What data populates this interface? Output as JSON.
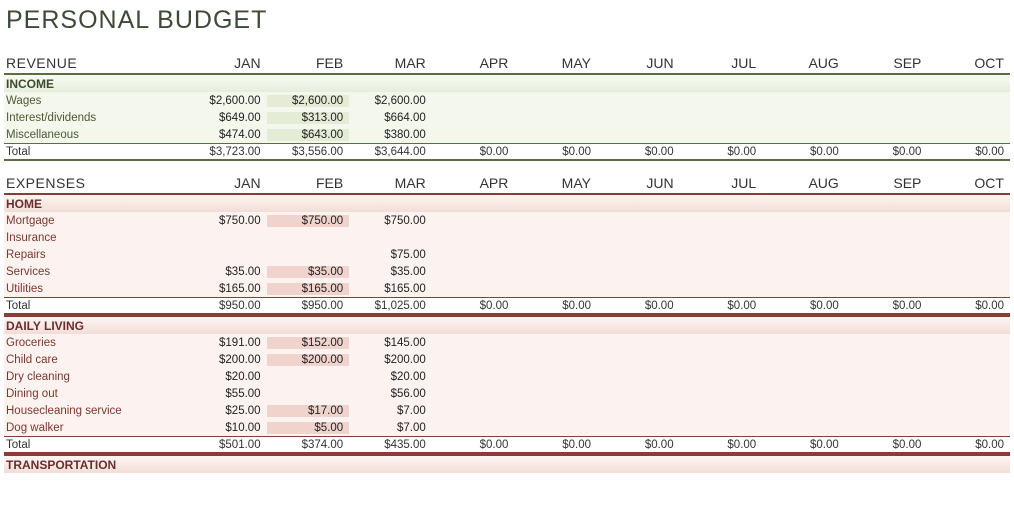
{
  "title": "PERSONAL BUDGET",
  "months": [
    "JAN",
    "FEB",
    "MAR",
    "APR",
    "MAY",
    "JUN",
    "JUL",
    "AUG",
    "SEP",
    "OCT"
  ],
  "currency_prefix": "$",
  "colors": {
    "income_border": "#5c6e3e",
    "income_bg": "#f3f7ec",
    "income_alt": "#e4ecd6",
    "income_label": "#4b5a36",
    "expense_border": "#8a3d36",
    "expense_bg": "#fcf3f0",
    "expense_alt": "#f1d3cd",
    "expense_label": "#7a382f"
  },
  "sections": [
    {
      "header": "REVENUE",
      "theme": "income",
      "categories": [
        {
          "name": "INCOME",
          "rows": [
            {
              "label": "Wages",
              "values": [
                2600.0,
                2600.0,
                2600.0,
                null,
                null,
                null,
                null,
                null,
                null,
                null
              ]
            },
            {
              "label": "Interest/dividends",
              "values": [
                649.0,
                313.0,
                664.0,
                null,
                null,
                null,
                null,
                null,
                null,
                null
              ]
            },
            {
              "label": "Miscellaneous",
              "values": [
                474.0,
                643.0,
                380.0,
                null,
                null,
                null,
                null,
                null,
                null,
                null
              ]
            }
          ],
          "total": {
            "label": "Total",
            "values": [
              3723.0,
              3556.0,
              3644.0,
              0.0,
              0.0,
              0.0,
              0.0,
              0.0,
              0.0,
              0.0
            ]
          }
        }
      ]
    },
    {
      "header": "EXPENSES",
      "theme": "expense",
      "categories": [
        {
          "name": "HOME",
          "rows": [
            {
              "label": "Mortgage",
              "values": [
                750.0,
                750.0,
                750.0,
                null,
                null,
                null,
                null,
                null,
                null,
                null
              ]
            },
            {
              "label": "Insurance",
              "values": [
                null,
                null,
                null,
                null,
                null,
                null,
                null,
                null,
                null,
                null
              ]
            },
            {
              "label": "Repairs",
              "values": [
                null,
                null,
                75.0,
                null,
                null,
                null,
                null,
                null,
                null,
                null
              ]
            },
            {
              "label": "Services",
              "values": [
                35.0,
                35.0,
                35.0,
                null,
                null,
                null,
                null,
                null,
                null,
                null
              ]
            },
            {
              "label": "Utilities",
              "values": [
                165.0,
                165.0,
                165.0,
                null,
                null,
                null,
                null,
                null,
                null,
                null
              ]
            }
          ],
          "total": {
            "label": "Total",
            "values": [
              950.0,
              950.0,
              1025.0,
              0.0,
              0.0,
              0.0,
              0.0,
              0.0,
              0.0,
              0.0
            ]
          }
        },
        {
          "name": "DAILY LIVING",
          "rows": [
            {
              "label": "Groceries",
              "values": [
                191.0,
                152.0,
                145.0,
                null,
                null,
                null,
                null,
                null,
                null,
                null
              ]
            },
            {
              "label": "Child care",
              "values": [
                200.0,
                200.0,
                200.0,
                null,
                null,
                null,
                null,
                null,
                null,
                null
              ]
            },
            {
              "label": "Dry cleaning",
              "values": [
                20.0,
                null,
                20.0,
                null,
                null,
                null,
                null,
                null,
                null,
                null
              ]
            },
            {
              "label": "Dining out",
              "values": [
                55.0,
                null,
                56.0,
                null,
                null,
                null,
                null,
                null,
                null,
                null
              ]
            },
            {
              "label": "Housecleaning service",
              "values": [
                25.0,
                17.0,
                7.0,
                null,
                null,
                null,
                null,
                null,
                null,
                null
              ]
            },
            {
              "label": "Dog walker",
              "values": [
                10.0,
                5.0,
                7.0,
                null,
                null,
                null,
                null,
                null,
                null,
                null
              ]
            }
          ],
          "total": {
            "label": "Total",
            "values": [
              501.0,
              374.0,
              435.0,
              0.0,
              0.0,
              0.0,
              0.0,
              0.0,
              0.0,
              0.0
            ]
          }
        },
        {
          "name": "TRANSPORTATION",
          "rows": [],
          "total": null
        }
      ]
    }
  ]
}
